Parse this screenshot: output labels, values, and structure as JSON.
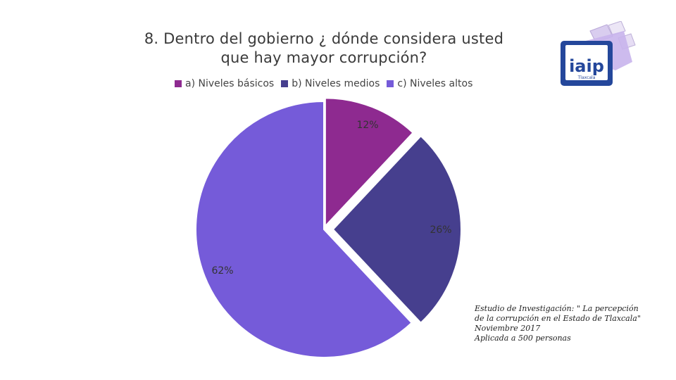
{
  "chart_data": {
    "type": "pie",
    "title": "8. Dentro del gobierno ¿ dónde considera usted que hay mayor corrupción?",
    "title_lines": [
      "8. Dentro del gobierno ¿ dónde considera usted",
      "que hay mayor corrupción?"
    ],
    "categories": [
      "a) Niveles básicos",
      "b) Niveles medios",
      "c) Niveles altos"
    ],
    "values": [
      12,
      26,
      62
    ],
    "value_labels": [
      "12%",
      "26%",
      "62%"
    ],
    "colors": [
      "#8e2a90",
      "#463f8e",
      "#755bd9"
    ],
    "legend_position": "top",
    "exploded": true
  },
  "logo": {
    "text": "iaip",
    "subtext": "Tlaxcala"
  },
  "source_note": {
    "lines": [
      "Estudio de Investigación: \" La percepción",
      "de la corrupción en el Estado de Tlaxcala\"",
      "Noviembre 2017",
      "Aplicada a 500 personas"
    ]
  }
}
